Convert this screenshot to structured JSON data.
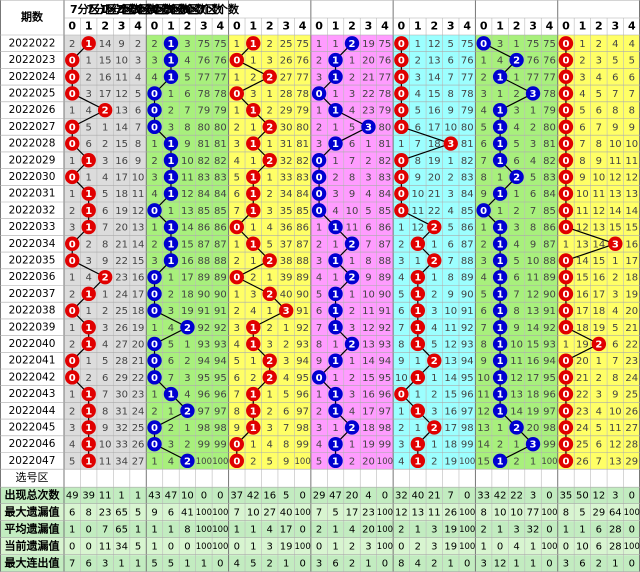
{
  "header": {
    "period_label": "期数",
    "zones": [
      "7分区1区个数",
      "7分区2区个数",
      "7分区3区个数",
      "7分区4区个数",
      "7分区5区个数",
      "7分区6区个数",
      "7分区7区个数"
    ],
    "digits": [
      0,
      1,
      2,
      3,
      4
    ]
  },
  "rows": [
    {
      "period": "2022022",
      "hits": [
        1,
        1,
        1,
        2,
        0,
        0,
        0
      ],
      "cells": [
        2,
        1,
        14,
        9,
        2,
        2,
        1,
        3,
        75,
        75,
        1,
        1,
        2,
        25,
        75,
        1,
        1,
        2,
        19,
        75,
        0,
        1,
        12,
        5,
        75,
        0,
        3,
        1,
        75,
        75,
        0,
        1,
        2,
        4,
        4
      ]
    },
    {
      "period": "2022023",
      "hits": [
        0,
        1,
        0,
        1,
        0,
        2,
        0
      ],
      "cells": [
        0,
        1,
        15,
        10,
        3,
        3,
        1,
        4,
        76,
        76,
        0,
        1,
        3,
        26,
        76,
        2,
        1,
        1,
        20,
        76,
        0,
        2,
        13,
        6,
        76,
        1,
        4,
        2,
        76,
        76,
        0,
        2,
        3,
        5,
        5
      ]
    },
    {
      "period": "2022024",
      "hits": [
        0,
        1,
        2,
        1,
        0,
        1,
        0
      ],
      "cells": [
        0,
        2,
        16,
        11,
        4,
        4,
        1,
        5,
        77,
        77,
        1,
        2,
        2,
        27,
        77,
        3,
        1,
        2,
        21,
        77,
        0,
        3,
        14,
        7,
        77,
        2,
        1,
        1,
        77,
        77,
        0,
        3,
        4,
        6,
        6
      ]
    },
    {
      "period": "2022025",
      "hits": [
        0,
        0,
        0,
        0,
        0,
        3,
        0
      ],
      "cells": [
        0,
        3,
        17,
        12,
        5,
        0,
        1,
        6,
        78,
        78,
        0,
        3,
        1,
        28,
        78,
        0,
        1,
        3,
        22,
        78,
        0,
        4,
        15,
        8,
        78,
        3,
        1,
        2,
        3,
        78,
        0,
        4,
        5,
        7,
        7
      ]
    },
    {
      "period": "2022026",
      "hits": [
        2,
        0,
        1,
        1,
        0,
        1,
        0
      ],
      "cells": [
        1,
        4,
        2,
        13,
        6,
        0,
        2,
        7,
        79,
        79,
        1,
        1,
        2,
        29,
        79,
        1,
        1,
        4,
        23,
        79,
        0,
        5,
        16,
        9,
        79,
        4,
        1,
        3,
        1,
        79,
        0,
        5,
        6,
        8,
        8
      ]
    },
    {
      "period": "2022027",
      "hits": [
        0,
        0,
        2,
        3,
        0,
        1,
        0
      ],
      "cells": [
        0,
        5,
        1,
        14,
        7,
        0,
        3,
        8,
        80,
        80,
        2,
        1,
        2,
        30,
        80,
        2,
        1,
        5,
        3,
        80,
        0,
        6,
        17,
        10,
        80,
        5,
        1,
        4,
        2,
        80,
        0,
        6,
        7,
        9,
        9
      ]
    },
    {
      "period": "2022028",
      "hits": [
        0,
        1,
        1,
        1,
        3,
        1,
        0
      ],
      "cells": [
        0,
        6,
        2,
        15,
        8,
        1,
        1,
        9,
        81,
        81,
        3,
        1,
        1,
        31,
        81,
        3,
        1,
        6,
        1,
        81,
        1,
        7,
        18,
        3,
        81,
        6,
        1,
        5,
        3,
        81,
        0,
        7,
        8,
        10,
        10
      ]
    },
    {
      "period": "2022029",
      "hits": [
        1,
        1,
        2,
        0,
        0,
        1,
        0
      ],
      "cells": [
        1,
        1,
        3,
        16,
        9,
        2,
        1,
        10,
        82,
        82,
        4,
        1,
        2,
        32,
        82,
        0,
        1,
        7,
        2,
        82,
        0,
        8,
        19,
        1,
        82,
        7,
        1,
        6,
        4,
        82,
        0,
        8,
        9,
        11,
        11
      ]
    },
    {
      "period": "2022030",
      "hits": [
        0,
        1,
        1,
        0,
        0,
        2,
        0
      ],
      "cells": [
        0,
        1,
        4,
        17,
        10,
        3,
        1,
        11,
        83,
        83,
        5,
        1,
        1,
        33,
        83,
        0,
        2,
        8,
        3,
        83,
        0,
        9,
        20,
        2,
        83,
        8,
        1,
        2,
        5,
        83,
        0,
        9,
        10,
        12,
        12
      ]
    },
    {
      "period": "2022031",
      "hits": [
        1,
        1,
        1,
        0,
        0,
        1,
        0
      ],
      "cells": [
        1,
        1,
        5,
        18,
        11,
        4,
        1,
        12,
        84,
        84,
        6,
        1,
        2,
        34,
        84,
        0,
        3,
        9,
        4,
        84,
        0,
        10,
        21,
        3,
        84,
        9,
        1,
        1,
        6,
        84,
        0,
        10,
        11,
        13,
        13
      ]
    },
    {
      "period": "2022032",
      "hits": [
        1,
        0,
        1,
        0,
        0,
        0,
        0
      ],
      "cells": [
        2,
        1,
        6,
        19,
        12,
        0,
        1,
        13,
        85,
        85,
        7,
        1,
        3,
        35,
        85,
        0,
        4,
        10,
        5,
        85,
        0,
        11,
        22,
        4,
        85,
        0,
        1,
        2,
        7,
        85,
        0,
        11,
        12,
        14,
        14
      ]
    },
    {
      "period": "2022033",
      "hits": [
        1,
        1,
        0,
        1,
        2,
        1,
        0
      ],
      "cells": [
        3,
        1,
        7,
        20,
        13,
        1,
        1,
        14,
        86,
        86,
        0,
        1,
        4,
        36,
        86,
        1,
        1,
        11,
        6,
        86,
        1,
        12,
        2,
        5,
        86,
        1,
        1,
        3,
        8,
        86,
        0,
        12,
        13,
        15,
        15
      ]
    },
    {
      "period": "2022034",
      "hits": [
        0,
        1,
        1,
        2,
        1,
        1,
        3
      ],
      "cells": [
        0,
        2,
        8,
        21,
        14,
        2,
        1,
        15,
        87,
        87,
        1,
        1,
        5,
        37,
        87,
        2,
        1,
        2,
        7,
        87,
        2,
        1,
        1,
        6,
        87,
        2,
        1,
        4,
        9,
        87,
        1,
        13,
        14,
        3,
        16
      ]
    },
    {
      "period": "2022035",
      "hits": [
        0,
        1,
        2,
        1,
        2,
        1,
        0
      ],
      "cells": [
        0,
        3,
        9,
        22,
        15,
        3,
        1,
        16,
        88,
        88,
        2,
        1,
        2,
        38,
        88,
        3,
        1,
        1,
        8,
        88,
        3,
        1,
        2,
        7,
        88,
        3,
        1,
        5,
        10,
        88,
        0,
        14,
        15,
        1,
        17
      ]
    },
    {
      "period": "2022036",
      "hits": [
        2,
        0,
        0,
        2,
        1,
        1,
        0
      ],
      "cells": [
        1,
        4,
        2,
        23,
        16,
        0,
        1,
        17,
        89,
        89,
        0,
        2,
        1,
        39,
        89,
        4,
        1,
        2,
        9,
        89,
        4,
        1,
        1,
        8,
        89,
        4,
        1,
        6,
        11,
        89,
        0,
        15,
        16,
        2,
        18
      ]
    },
    {
      "period": "2022037",
      "hits": [
        1,
        0,
        2,
        1,
        1,
        1,
        0
      ],
      "cells": [
        2,
        1,
        1,
        24,
        17,
        0,
        2,
        18,
        90,
        90,
        1,
        3,
        2,
        40,
        90,
        5,
        1,
        1,
        10,
        90,
        5,
        1,
        2,
        9,
        90,
        5,
        1,
        7,
        12,
        90,
        0,
        16,
        17,
        3,
        19
      ]
    },
    {
      "period": "2022038",
      "hits": [
        0,
        0,
        3,
        1,
        1,
        1,
        0
      ],
      "cells": [
        0,
        1,
        2,
        25,
        18,
        0,
        3,
        19,
        91,
        91,
        2,
        4,
        1,
        3,
        91,
        6,
        1,
        2,
        11,
        91,
        6,
        1,
        3,
        10,
        91,
        6,
        1,
        8,
        13,
        91,
        0,
        17,
        18,
        4,
        20
      ]
    },
    {
      "period": "2022039",
      "hits": [
        1,
        2,
        1,
        1,
        1,
        1,
        0
      ],
      "cells": [
        1,
        1,
        3,
        26,
        19,
        1,
        4,
        2,
        92,
        92,
        3,
        1,
        2,
        1,
        92,
        7,
        1,
        3,
        12,
        92,
        7,
        1,
        4,
        11,
        92,
        7,
        1,
        9,
        14,
        92,
        0,
        18,
        19,
        5,
        21
      ]
    },
    {
      "period": "2022040",
      "hits": [
        1,
        0,
        1,
        2,
        1,
        1,
        2
      ],
      "cells": [
        2,
        1,
        4,
        27,
        20,
        0,
        5,
        1,
        93,
        93,
        4,
        1,
        3,
        2,
        93,
        8,
        1,
        2,
        13,
        93,
        8,
        1,
        5,
        12,
        93,
        8,
        1,
        10,
        15,
        93,
        1,
        19,
        2,
        6,
        22
      ]
    },
    {
      "period": "2022041",
      "hits": [
        0,
        0,
        2,
        1,
        2,
        1,
        0
      ],
      "cells": [
        0,
        1,
        5,
        28,
        21,
        0,
        6,
        2,
        94,
        94,
        5,
        1,
        2,
        3,
        94,
        9,
        1,
        1,
        14,
        94,
        9,
        1,
        2,
        13,
        94,
        9,
        1,
        11,
        16,
        94,
        0,
        20,
        1,
        7,
        23
      ]
    },
    {
      "period": "2022042",
      "hits": [
        0,
        0,
        2,
        0,
        1,
        1,
        0
      ],
      "cells": [
        0,
        2,
        6,
        29,
        22,
        0,
        7,
        3,
        95,
        95,
        6,
        2,
        2,
        4,
        95,
        0,
        1,
        2,
        15,
        95,
        10,
        1,
        1,
        14,
        95,
        10,
        1,
        12,
        17,
        95,
        0,
        21,
        2,
        8,
        24
      ]
    },
    {
      "period": "2022043",
      "hits": [
        1,
        1,
        1,
        1,
        0,
        1,
        0
      ],
      "cells": [
        1,
        1,
        7,
        30,
        23,
        1,
        1,
        4,
        96,
        96,
        7,
        1,
        1,
        5,
        96,
        1,
        1,
        3,
        16,
        96,
        0,
        1,
        2,
        15,
        96,
        11,
        1,
        13,
        18,
        96,
        0,
        22,
        3,
        9,
        25
      ]
    },
    {
      "period": "2022044",
      "hits": [
        1,
        2,
        1,
        1,
        1,
        1,
        0
      ],
      "cells": [
        2,
        1,
        8,
        31,
        24,
        2,
        1,
        2,
        97,
        97,
        8,
        1,
        2,
        6,
        97,
        2,
        1,
        4,
        17,
        97,
        1,
        1,
        3,
        16,
        97,
        12,
        1,
        14,
        19,
        97,
        0,
        23,
        4,
        10,
        26
      ]
    },
    {
      "period": "2022045",
      "hits": [
        1,
        0,
        1,
        2,
        2,
        2,
        0
      ],
      "cells": [
        3,
        1,
        9,
        32,
        25,
        0,
        2,
        1,
        98,
        98,
        9,
        1,
        3,
        7,
        98,
        3,
        1,
        2,
        18,
        98,
        2,
        1,
        2,
        17,
        98,
        13,
        1,
        2,
        20,
        98,
        0,
        24,
        5,
        11,
        27
      ]
    },
    {
      "period": "2022046",
      "hits": [
        1,
        0,
        0,
        1,
        1,
        3,
        0
      ],
      "cells": [
        4,
        1,
        10,
        33,
        26,
        0,
        3,
        2,
        99,
        99,
        0,
        1,
        4,
        8,
        99,
        4,
        1,
        1,
        19,
        99,
        3,
        1,
        1,
        18,
        99,
        14,
        2,
        1,
        3,
        99,
        0,
        25,
        6,
        12,
        28
      ]
    },
    {
      "period": "2022047",
      "hits": [
        1,
        2,
        0,
        1,
        1,
        1,
        0
      ],
      "cells": [
        5,
        1,
        11,
        34,
        27,
        1,
        4,
        2,
        100,
        100,
        0,
        2,
        5,
        9,
        100,
        5,
        1,
        2,
        20,
        100,
        4,
        1,
        2,
        19,
        100,
        15,
        1,
        2,
        1,
        100,
        0,
        26,
        7,
        13,
        29
      ]
    }
  ],
  "select_label": "选号区",
  "stats": [
    {
      "label": "出现总次数",
      "values": [
        49,
        39,
        11,
        1,
        1,
        43,
        47,
        10,
        0,
        0,
        37,
        42,
        16,
        5,
        0,
        29,
        47,
        20,
        4,
        0,
        32,
        40,
        21,
        7,
        0,
        33,
        42,
        22,
        3,
        0,
        35,
        50,
        12,
        3,
        0
      ]
    },
    {
      "label": "最大遗漏值",
      "values": [
        6,
        8,
        23,
        65,
        5,
        9,
        6,
        41,
        100,
        100,
        7,
        10,
        27,
        40,
        100,
        7,
        5,
        17,
        23,
        100,
        12,
        13,
        11,
        26,
        100,
        8,
        10,
        10,
        77,
        100,
        8,
        5,
        29,
        64,
        100
      ]
    },
    {
      "label": "平均遗漏值",
      "values": [
        1,
        0,
        7,
        65,
        1,
        1,
        1,
        8,
        100,
        100,
        1,
        1,
        4,
        17,
        0,
        2,
        1,
        4,
        20,
        100,
        2,
        1,
        3,
        19,
        100,
        2,
        1,
        3,
        32,
        0,
        1,
        1,
        6,
        28,
        0
      ]
    },
    {
      "label": "当前遗漏值",
      "values": [
        0,
        0,
        11,
        34,
        5,
        1,
        0,
        0,
        100,
        100,
        0,
        1,
        3,
        19,
        100,
        0,
        1,
        2,
        3,
        100,
        0,
        2,
        3,
        19,
        100,
        1,
        0,
        4,
        1,
        100,
        0,
        10,
        6,
        28,
        100
      ]
    },
    {
      "label": "最大连出值",
      "values": [
        7,
        6,
        3,
        1,
        1,
        5,
        5,
        1,
        1,
        0,
        4,
        5,
        2,
        1,
        0,
        3,
        6,
        2,
        1,
        0,
        8,
        4,
        2,
        1,
        0,
        3,
        12,
        1,
        1,
        0,
        3,
        6,
        2,
        1,
        0
      ]
    }
  ]
}
